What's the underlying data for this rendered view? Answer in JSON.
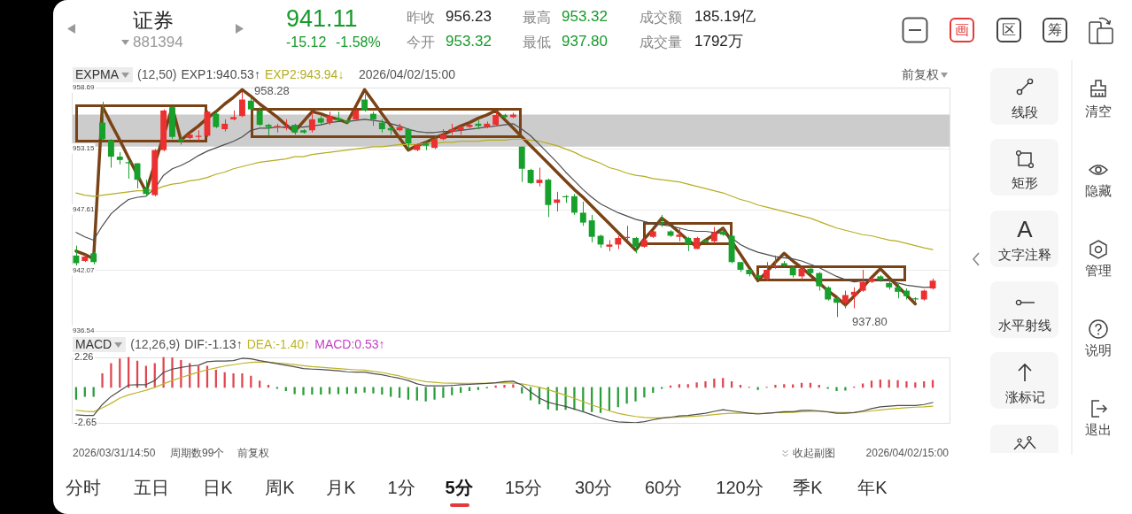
{
  "chart_data": [
    {
      "type": "candlestick",
      "legend_title": "EXPMA",
      "legend": "top left",
      "grid": "y",
      "tick_labels": "y",
      "annotations": [
        "(12,50)",
        "2026/04/02/15:00",
        "前复权",
        "958.28",
        "937.80"
      ],
      "categories": [
        null,
        null,
        null,
        null,
        null,
        null,
        null,
        null,
        null,
        null,
        null,
        null,
        null,
        null,
        null,
        null,
        null,
        null,
        null,
        null,
        null,
        null,
        null,
        null,
        null,
        null,
        null,
        null,
        null,
        null,
        null,
        null,
        null,
        null,
        null,
        null,
        null,
        null,
        null,
        null,
        null,
        null,
        null,
        null,
        null,
        null,
        null,
        null,
        null,
        null,
        null,
        null,
        null,
        null,
        null,
        null,
        null,
        null,
        null,
        null,
        null,
        null,
        null,
        null,
        null,
        null,
        null,
        null,
        null,
        null,
        null,
        null,
        null,
        null,
        null,
        null,
        null,
        null,
        null,
        null,
        null,
        null,
        null,
        null,
        null,
        null,
        null,
        null,
        null,
        null,
        null,
        null,
        null,
        null,
        null,
        null,
        null,
        null,
        null
      ],
      "ylim": [
        936.54,
        958.69
      ],
      "yticks": [
        936.54,
        942.07,
        947.61,
        953.15,
        958.69
      ],
      "bands": [
        {
          "axis": "y",
          "from": 953.32,
          "to": 956.23,
          "color": "#cccccc"
        }
      ],
      "ohlc": [
        [
          943.4,
          944.3,
          942.5,
          942.7
        ],
        [
          942.9,
          943.5,
          942.8,
          943.3
        ],
        [
          943.6,
          943.7,
          942.6,
          942.8
        ],
        [
          955.5,
          957.4,
          953.9,
          954.0
        ],
        [
          953.9,
          954.0,
          951.4,
          952.4
        ],
        [
          952.4,
          952.8,
          951.7,
          952.1
        ],
        [
          951.9,
          952.1,
          950.4,
          951.8
        ],
        [
          951.8,
          951.8,
          949.5,
          950.3
        ],
        [
          949.5,
          950.3,
          948.8,
          949.0
        ],
        [
          948.9,
          953.1,
          948.8,
          953.0
        ],
        [
          953.0,
          956.7,
          952.9,
          956.6
        ],
        [
          956.9,
          957.0,
          954.0,
          954.2
        ],
        [
          954.0,
          954.2,
          953.5,
          953.8
        ],
        [
          954.1,
          954.6,
          954.0,
          954.4
        ],
        [
          954.2,
          954.8,
          953.8,
          954.3
        ],
        [
          954.3,
          956.6,
          954.2,
          956.5
        ],
        [
          956.3,
          956.5,
          955.0,
          955.1
        ],
        [
          954.9,
          955.8,
          954.7,
          955.4
        ],
        [
          955.8,
          956.6,
          955.7,
          956.0
        ],
        [
          956.1,
          958.28,
          956.0,
          957.6
        ],
        [
          957.5,
          957.8,
          956.6,
          956.7
        ],
        [
          956.6,
          956.9,
          955.2,
          955.3
        ],
        [
          955.3,
          955.4,
          954.3,
          955.1
        ],
        [
          955.1,
          955.4,
          954.6,
          955.2
        ],
        [
          955.0,
          955.8,
          954.8,
          955.1
        ],
        [
          955.3,
          955.4,
          954.4,
          954.6
        ],
        [
          954.8,
          954.9,
          954.5,
          954.6
        ],
        [
          954.8,
          956.5,
          954.6,
          955.8
        ],
        [
          955.9,
          956.1,
          955.3,
          955.5
        ],
        [
          955.5,
          956.5,
          955.3,
          956.1
        ],
        [
          955.9,
          956.5,
          955.6,
          955.7
        ],
        [
          955.7,
          955.9,
          955.4,
          955.5
        ],
        [
          955.8,
          956.7,
          955.7,
          956.6
        ],
        [
          957.6,
          958.1,
          956.5,
          956.6
        ],
        [
          956.3,
          956.5,
          955.2,
          955.8
        ],
        [
          955.5,
          955.8,
          954.6,
          954.9
        ],
        [
          955.0,
          955.2,
          954.4,
          954.8
        ],
        [
          954.8,
          955.4,
          954.7,
          955.1
        ],
        [
          954.9,
          955.0,
          953.0,
          953.6
        ],
        [
          953.0,
          953.6,
          952.9,
          953.5
        ],
        [
          953.6,
          953.7,
          953.0,
          953.4
        ],
        [
          953.2,
          954.2,
          953.1,
          954.0
        ],
        [
          954.0,
          954.9,
          953.9,
          954.4
        ],
        [
          954.7,
          955.4,
          954.4,
          954.9
        ],
        [
          954.8,
          955.2,
          954.4,
          955.1
        ],
        [
          955.1,
          955.5,
          955.0,
          955.3
        ],
        [
          955.4,
          955.7,
          954.9,
          955.2
        ],
        [
          955.1,
          955.6,
          955.0,
          955.4
        ],
        [
          955.3,
          956.5,
          955.2,
          956.2
        ],
        [
          956.2,
          956.3,
          955.9,
          956.0
        ],
        [
          956.0,
          956.4,
          955.9,
          956.23
        ],
        [
          953.32,
          953.32,
          950.1,
          951.3
        ],
        [
          951.2,
          951.3,
          949.9,
          950.0
        ],
        [
          950.0,
          951.4,
          949.7,
          950.3
        ],
        [
          950.3,
          950.4,
          946.9,
          948.0
        ],
        [
          948.2,
          949.2,
          947.4,
          948.5
        ],
        [
          948.8,
          948.9,
          948.2,
          948.7
        ],
        [
          948.8,
          949.0,
          947.1,
          947.3
        ],
        [
          947.3,
          948.3,
          946.1,
          946.4
        ],
        [
          946.6,
          947.1,
          944.6,
          945.1
        ],
        [
          945.2,
          945.3,
          944.1,
          944.4
        ],
        [
          944.2,
          944.8,
          943.8,
          944.4
        ],
        [
          944.4,
          945.2,
          944.0,
          945.0
        ],
        [
          945.0,
          946.1,
          944.8,
          945.1
        ],
        [
          945.0,
          945.1,
          943.6,
          944.2
        ],
        [
          944.2,
          945.0,
          944.1,
          944.8
        ],
        [
          945.1,
          945.7,
          945.0,
          945.6
        ],
        [
          946.4,
          947.1,
          946.0,
          946.3
        ],
        [
          945.6,
          945.7,
          945.1,
          945.2
        ],
        [
          945.1,
          945.9,
          944.7,
          945.3
        ],
        [
          945.0,
          945.1,
          943.8,
          944.4
        ],
        [
          944.0,
          945.1,
          944.0,
          945.0
        ],
        [
          944.8,
          944.9,
          944.5,
          944.6
        ],
        [
          944.7,
          946.0,
          944.5,
          945.5
        ],
        [
          945.6,
          945.9,
          945.2,
          945.3
        ],
        [
          945.2,
          945.3,
          942.7,
          942.8
        ],
        [
          942.8,
          942.8,
          941.9,
          942.1
        ],
        [
          942.1,
          942.2,
          941.5,
          941.7
        ],
        [
          941.6,
          941.7,
          941.2,
          941.4
        ],
        [
          941.3,
          942.8,
          941.1,
          942.1
        ],
        [
          942.4,
          943.4,
          942.2,
          942.5
        ],
        [
          942.7,
          942.9,
          942.4,
          942.5
        ],
        [
          942.3,
          942.5,
          941.4,
          941.6
        ],
        [
          941.5,
          942.4,
          941.2,
          942.2
        ],
        [
          942.2,
          942.4,
          941.7,
          941.8
        ],
        [
          941.8,
          941.9,
          940.2,
          940.6
        ],
        [
          940.5,
          940.6,
          939.3,
          939.4
        ],
        [
          939.5,
          939.7,
          937.8,
          939.1
        ],
        [
          939.1,
          940.2,
          938.6,
          939.8
        ],
        [
          939.8,
          940.5,
          938.6,
          940.1
        ],
        [
          940.2,
          942.1,
          940.1,
          941.0
        ],
        [
          941.0,
          941.4,
          940.9,
          941.3
        ],
        [
          941.5,
          941.6,
          941.0,
          941.2
        ],
        [
          940.9,
          941.2,
          940.3,
          940.5
        ],
        [
          940.5,
          940.8,
          939.5,
          940.1
        ],
        [
          940.2,
          940.4,
          939.4,
          939.7
        ],
        [
          939.5,
          939.6,
          939.1,
          939.4
        ],
        [
          939.4,
          940.3,
          939.3,
          940.2
        ],
        [
          940.4,
          941.3,
          940.3,
          941.11
        ]
      ],
      "series": [
        {
          "name": "EXP1:940.53↑",
          "type": "line",
          "color": "#4d4d4d",
          "values": [
            945.5,
            945.1,
            944.8,
            946.1,
            947.2,
            947.9,
            948.5,
            948.7,
            948.8,
            949.5,
            950.7,
            951.3,
            951.6,
            952.0,
            952.5,
            952.9,
            953.2,
            953.5,
            953.8,
            954.2,
            954.8,
            955.0,
            955.0,
            955.1,
            955.1,
            955.1,
            955.1,
            955.2,
            955.3,
            955.5,
            955.6,
            955.6,
            955.7,
            955.8,
            955.7,
            955.6,
            955.4,
            955.2,
            954.9,
            954.7,
            954.6,
            954.6,
            954.7,
            954.7,
            954.8,
            954.9,
            955.0,
            955.1,
            955.2,
            955.3,
            955.4,
            954.9,
            954.3,
            953.5,
            952.7,
            951.9,
            951.0,
            950.2,
            949.4,
            948.7,
            948.1,
            947.7,
            947.3,
            947.0,
            946.7,
            946.5,
            946.3,
            946.2,
            946.1,
            945.9,
            945.7,
            945.6,
            945.6,
            945.5,
            945.4,
            945.0,
            944.4,
            944.0,
            943.7,
            943.5,
            943.3,
            943.2,
            943.1,
            942.9,
            942.6,
            942.3,
            941.9,
            941.5,
            941.2,
            941.0,
            941.1,
            941.1,
            941.1,
            941.1,
            940.9,
            940.7,
            940.6,
            940.5,
            940.53
          ]
        },
        {
          "name": "EXP2:943.94↓",
          "type": "line",
          "color": "#b5ae22",
          "values": [
            949.1,
            948.9,
            948.8,
            948.9,
            949.0,
            949.1,
            949.2,
            949.3,
            949.3,
            949.4,
            949.7,
            949.9,
            950.0,
            950.2,
            950.3,
            950.5,
            950.8,
            951.0,
            951.3,
            951.5,
            951.7,
            951.9,
            952.0,
            952.1,
            952.2,
            952.4,
            952.4,
            952.6,
            952.7,
            952.8,
            952.9,
            953.0,
            953.1,
            953.2,
            953.3,
            953.3,
            953.4,
            953.5,
            953.5,
            953.5,
            953.6,
            953.6,
            953.7,
            953.7,
            953.8,
            953.8,
            953.8,
            953.9,
            953.9,
            953.9,
            954.0,
            954.0,
            953.9,
            953.8,
            953.6,
            953.4,
            953.1,
            952.8,
            952.4,
            952.1,
            951.8,
            951.4,
            951.2,
            950.9,
            950.7,
            950.6,
            950.4,
            950.3,
            950.2,
            950.1,
            949.9,
            949.7,
            949.5,
            949.3,
            949.1,
            948.8,
            948.5,
            948.3,
            948.0,
            947.8,
            947.6,
            947.4,
            947.2,
            947.0,
            946.8,
            946.5,
            946.2,
            945.9,
            945.7,
            945.5,
            945.3,
            945.2,
            945.0,
            944.8,
            944.7,
            944.5,
            944.3,
            944.1,
            943.94
          ]
        },
        {
          "type": "line",
          "color": "#7a4316",
          "values": [
            943.8,
            943.5,
            943.1,
            957.0,
            955.4,
            953.9,
            952.3,
            null,
            949.2,
            null,
            954.3,
            956.9,
            953.9,
            954.6,
            955.2,
            955.9,
            956.5,
            957.2,
            957.8,
            958.5,
            957.9,
            957.2,
            956.6,
            956.0,
            955.3,
            954.7,
            955.6,
            956.5,
            956.3,
            956.0,
            955.8,
            955.5,
            957.0,
            958.5,
            957.4,
            956.3,
            955.2,
            954.1,
            953.0,
            953.4,
            953.7,
            954.1,
            954.4,
            954.8,
            955.2,
            955.5,
            955.9,
            956.2,
            956.6,
            955.8,
            955.0,
            954.2,
            953.4,
            952.6,
            951.8,
            951.0,
            950.2,
            949.4,
            948.7,
            947.9,
            947.1,
            946.3,
            945.5,
            944.7,
            943.9,
            944.9,
            945.8,
            946.8,
            946.2,
            945.5,
            944.8,
            944.2,
            944.8,
            945.3,
            945.9,
            944.7,
            943.5,
            942.3,
            941.1,
            941.9,
            942.8,
            943.6,
            942.9,
            942.3,
            941.6,
            940.9,
            940.2,
            939.6,
            938.9,
            939.7,
            940.5,
            941.4,
            942.2,
            941.4,
            940.6,
            939.8,
            939.0,
            null,
            null
          ]
        }
      ]
    },
    {
      "type": "bar",
      "legend_title": "MACD",
      "legend": "top left",
      "tick_labels": "y",
      "annotations": [
        "(12,26,9)",
        "MACD:0.53↑",
        "2026/03/31/14:50",
        "周期数99个",
        "前复权",
        "收起副图",
        "2026/04/02/15:00"
      ],
      "categories": [
        null,
        null,
        null,
        null,
        null,
        null,
        null,
        null,
        null,
        null,
        null,
        null,
        null,
        null,
        null,
        null,
        null,
        null,
        null,
        null,
        null,
        null,
        null,
        null,
        null,
        null,
        null,
        null,
        null,
        null,
        null,
        null,
        null,
        null,
        null,
        null,
        null,
        null,
        null,
        null,
        null,
        null,
        null,
        null,
        null,
        null,
        null,
        null,
        null,
        null,
        null,
        null,
        null,
        null,
        null,
        null,
        null,
        null,
        null,
        null,
        null,
        null,
        null,
        null,
        null,
        null,
        null,
        null,
        null,
        null,
        null,
        null,
        null,
        null,
        null,
        null,
        null,
        null,
        null,
        null,
        null,
        null,
        null,
        null,
        null,
        null,
        null,
        null,
        null,
        null,
        null,
        null,
        null,
        null,
        null,
        null,
        null,
        null,
        null
      ],
      "ylim": [
        -2.65,
        2.26
      ],
      "yticks": [
        -2.65,
        2.26
      ],
      "series": [
        {
          "name": "DIF:-1.13↑",
          "type": "line",
          "color": "#4d4d4d",
          "values": [
            -2.05,
            -2.1,
            -2.1,
            -1.28,
            -0.68,
            -0.26,
            0.17,
            0.2,
            0.2,
            0.51,
            1.11,
            1.36,
            1.48,
            1.59,
            1.65,
            1.91,
            1.96,
            1.96,
            1.99,
            2.17,
            2.13,
            1.99,
            1.88,
            1.76,
            1.65,
            1.53,
            1.4,
            1.36,
            1.33,
            1.28,
            1.23,
            1.16,
            1.14,
            1.14,
            1.02,
            0.94,
            0.8,
            0.68,
            0.51,
            0.26,
            0.12,
            0.12,
            0.12,
            0.14,
            0.19,
            0.22,
            0.26,
            0.29,
            0.34,
            0.43,
            0.46,
            0.17,
            -0.34,
            -0.8,
            -1.11,
            -1.28,
            -1.42,
            -1.62,
            -1.82,
            -2.05,
            -2.27,
            -2.47,
            -2.57,
            -2.61,
            -2.64,
            -2.56,
            -2.42,
            -2.3,
            -2.22,
            -2.13,
            -2.1,
            -2.01,
            -1.93,
            -1.79,
            -1.67,
            -1.76,
            -1.84,
            -1.93,
            -1.99,
            -1.93,
            -1.88,
            -1.82,
            -1.82,
            -1.72,
            -1.71,
            -1.76,
            -1.84,
            -1.93,
            -1.93,
            -1.88,
            -1.76,
            -1.59,
            -1.45,
            -1.4,
            -1.36,
            -1.36,
            -1.36,
            -1.28,
            -1.13
          ]
        },
        {
          "name": "DEA:-1.40↑",
          "type": "line",
          "color": "#bdb426",
          "values": [
            -1.71,
            -1.79,
            -1.82,
            -1.53,
            -1.19,
            -0.8,
            -0.56,
            -0.39,
            -0.22,
            0,
            0.26,
            0.51,
            0.73,
            0.94,
            1.14,
            1.31,
            1.45,
            1.59,
            1.69,
            1.79,
            1.86,
            1.89,
            1.88,
            1.82,
            1.76,
            1.7,
            1.62,
            1.55,
            1.5,
            1.45,
            1.4,
            1.35,
            1.31,
            1.28,
            1.19,
            1.11,
            0.97,
            0.85,
            0.68,
            0.55,
            0.43,
            0.38,
            0.32,
            0.31,
            0.29,
            0.29,
            0.29,
            0.31,
            0.32,
            0.34,
            0.31,
            0.26,
            0.14,
            0,
            -0.17,
            -0.38,
            -0.6,
            -0.82,
            -1.07,
            -1.31,
            -1.53,
            -1.76,
            -1.93,
            -2.06,
            -2.17,
            -2.25,
            -2.28,
            -2.28,
            -2.25,
            -2.22,
            -2.18,
            -2.15,
            -2.1,
            -2.03,
            -1.96,
            -1.93,
            -1.91,
            -1.93,
            -1.94,
            -1.93,
            -1.89,
            -1.88,
            -1.86,
            -1.82,
            -1.79,
            -1.79,
            -1.82,
            -1.86,
            -1.88,
            -1.88,
            -1.82,
            -1.76,
            -1.69,
            -1.62,
            -1.57,
            -1.52,
            -1.48,
            -1.45,
            -1.4
          ]
        },
        {
          "type": "bar",
          "colors": [
            "#2a9d3a",
            "#2a9d3a",
            "#2a9d3a",
            "#e0454f",
            "#e0454f",
            "#e0454f",
            "#e0454f",
            "#e0454f",
            "#e0454f",
            "#e0454f",
            "#e0454f",
            "#e0454f",
            "#e0454f",
            "#e0454f",
            "#e0454f",
            "#e0454f",
            "#e0454f",
            "#e0454f",
            "#e0454f",
            "#e0454f",
            "#e0454f",
            "#e0454f",
            "#e0454f",
            "#2a9d3a",
            "#2a9d3a",
            "#2a9d3a",
            "#2a9d3a",
            "#2a9d3a",
            "#2a9d3a",
            "#2a9d3a",
            "#2a9d3a",
            "#2a9d3a",
            "#2a9d3a",
            "#2a9d3a",
            "#2a9d3a",
            "#2a9d3a",
            "#2a9d3a",
            "#2a9d3a",
            "#2a9d3a",
            "#2a9d3a",
            "#2a9d3a",
            "#2a9d3a",
            "#2a9d3a",
            "#2a9d3a",
            "#2a9d3a",
            "#2a9d3a",
            "#2a9d3a",
            "#2a9d3a",
            "#e0454f",
            "#e0454f",
            "#e0454f",
            "#2a9d3a",
            "#2a9d3a",
            "#2a9d3a",
            "#2a9d3a",
            "#2a9d3a",
            "#2a9d3a",
            "#2a9d3a",
            "#2a9d3a",
            "#2a9d3a",
            "#2a9d3a",
            "#2a9d3a",
            "#2a9d3a",
            "#2a9d3a",
            "#2a9d3a",
            "#2a9d3a",
            "#2a9d3a",
            "#2a9d3a",
            "#e0454f",
            "#e0454f",
            "#e0454f",
            "#e0454f",
            "#e0454f",
            "#e0454f",
            "#e0454f",
            "#e0454f",
            "#e0454f",
            "#e0454f",
            "#2a9d3a",
            "#e0454f",
            "#e0454f",
            "#e0454f",
            "#e0454f",
            "#e0454f",
            "#e0454f",
            "#e0454f",
            "#2a9d3a",
            "#2a9d3a",
            "#2a9d3a",
            "#e0454f",
            "#e0454f",
            "#e0454f",
            "#e0454f",
            "#e0454f",
            "#e0454f",
            "#e0454f",
            "#e0454f",
            "#e0454f",
            "#e0454f"
          ],
          "values": [
            -0.9,
            -0.68,
            -0.68,
            1.02,
            1.79,
            2.13,
            2.26,
            1.96,
            1.59,
            1.79,
            2.26,
            2.22,
            2.01,
            1.79,
            1.59,
            1.59,
            1.28,
            1.11,
            1.02,
            1.02,
            0.85,
            0.48,
            0.17,
            -0.09,
            -0.26,
            -0.48,
            -0.56,
            -0.51,
            -0.51,
            -0.48,
            -0.48,
            -0.46,
            -0.43,
            -0.36,
            -0.43,
            -0.51,
            -0.68,
            -0.77,
            -0.9,
            -0.97,
            -1.02,
            -0.9,
            -0.77,
            -0.56,
            -0.39,
            -0.26,
            -0.17,
            -0.05,
            0.12,
            0.17,
            0.2,
            -0.43,
            -0.94,
            -1.24,
            -1.62,
            -1.71,
            -1.65,
            -1.65,
            -1.76,
            -1.82,
            -1.88,
            -1.71,
            -1.45,
            -1.19,
            -1.02,
            -0.73,
            -0.38,
            -0.09,
            0.12,
            0.22,
            0.22,
            0.34,
            0.43,
            0.63,
            0.68,
            0.43,
            0.17,
            0.02,
            -0.17,
            0.02,
            0.17,
            0.22,
            0.2,
            0.32,
            0.32,
            0.17,
            -0.09,
            -0.26,
            -0.22,
            0.03,
            0.26,
            0.48,
            0.56,
            0.55,
            0.51,
            0.43,
            0.34,
            0.43,
            0.53
          ]
        }
      ]
    },
    {
      "type": "other",
      "annotations": [
        "证券",
        "881394",
        "941.11",
        "-15.12",
        "-1.58%",
        "昨收",
        "956.23",
        "今开",
        "953.32",
        "最高",
        "953.32",
        "最低",
        "937.80",
        "成交额",
        "185.19亿",
        "成交量",
        "1792万",
        "画",
        "区",
        "筹",
        "线段",
        "矩形",
        "A",
        "文字注释",
        "水平射线",
        "涨标记",
        "清空",
        "隐藏",
        "管理",
        "说明",
        "退出",
        "分时",
        "五日",
        "日K",
        "周K",
        "月K",
        "1分",
        "5分",
        "15分",
        "30分",
        "60分",
        "120分",
        "季K",
        "年K"
      ]
    }
  ]
}
